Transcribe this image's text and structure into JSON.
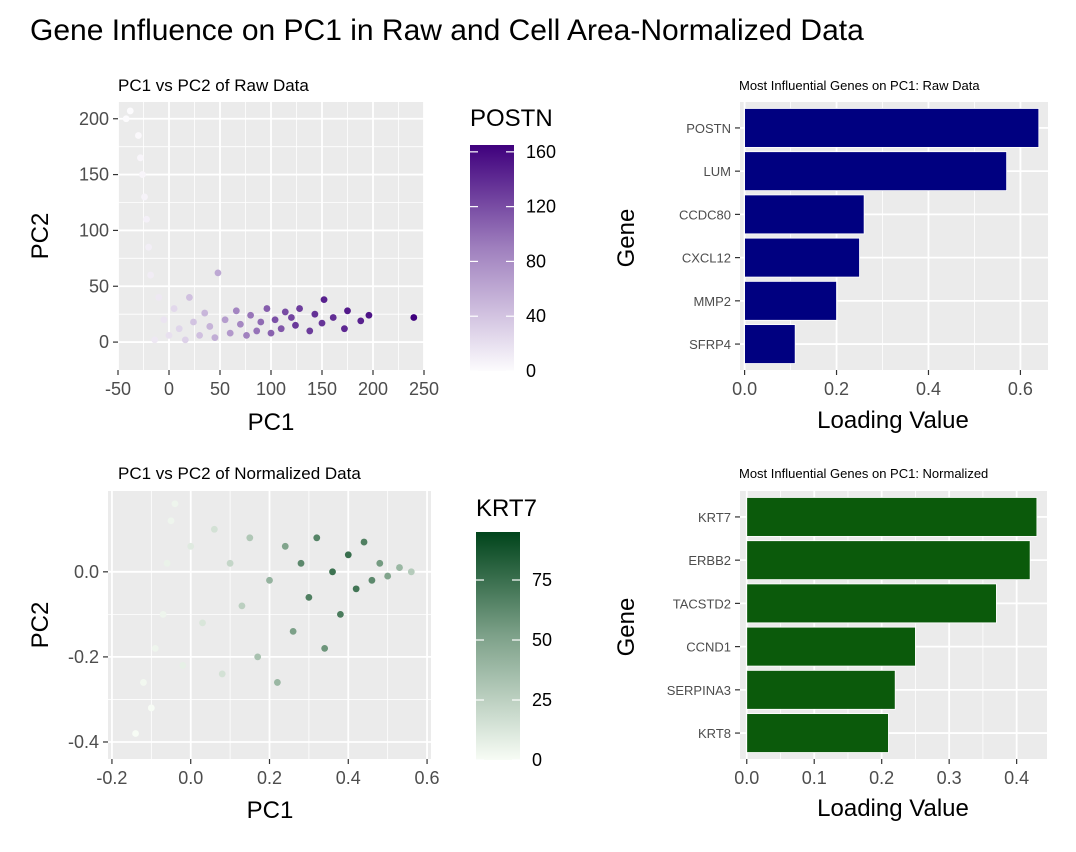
{
  "title": "Gene Influence on PC1 in Raw and Cell Area-Normalized Data",
  "colors": {
    "panel_bg": "#ebebeb",
    "grid": "#ffffff",
    "raw_low": "#fcfbfd",
    "raw_high": "#3f007d",
    "raw_bar": "#000080",
    "norm_low": "#f7fcf5",
    "norm_high": "#00441b",
    "norm_bar": "#0b5a0b"
  },
  "chart_data": [
    {
      "type": "scatter",
      "title": "PC1 vs PC2 of Raw Data",
      "xlabel": "PC1",
      "ylabel": "PC2",
      "xlim": [
        -50,
        250
      ],
      "ylim": [
        -25,
        215
      ],
      "xticks": [
        -50,
        0,
        50,
        100,
        150,
        200,
        250
      ],
      "yticks": [
        0,
        50,
        100,
        150,
        200
      ],
      "xtick_labels": [
        "-50",
        "0",
        "50",
        "100",
        "150",
        "200",
        "250"
      ],
      "ytick_labels": [
        "0",
        "50",
        "100",
        "150",
        "200"
      ],
      "grid": true,
      "legend_placement": "right",
      "color_legend": {
        "title": "POSTN",
        "min": 0,
        "max": 165,
        "ticks": [
          0,
          40,
          80,
          120,
          160
        ],
        "labels": [
          "0",
          "40",
          "80",
          "120",
          "160"
        ]
      },
      "points": [
        {
          "x": 240,
          "y": 22,
          "c": 165
        },
        {
          "x": 196,
          "y": 24,
          "c": 150
        },
        {
          "x": 188,
          "y": 19,
          "c": 140
        },
        {
          "x": 175,
          "y": 28,
          "c": 145
        },
        {
          "x": 172,
          "y": 12,
          "c": 135
        },
        {
          "x": 161,
          "y": 22,
          "c": 130
        },
        {
          "x": 152,
          "y": 38,
          "c": 140
        },
        {
          "x": 150,
          "y": 17,
          "c": 125
        },
        {
          "x": 143,
          "y": 25,
          "c": 128
        },
        {
          "x": 138,
          "y": 10,
          "c": 120
        },
        {
          "x": 128,
          "y": 30,
          "c": 118
        },
        {
          "x": 124,
          "y": 15,
          "c": 122
        },
        {
          "x": 120,
          "y": 22,
          "c": 112
        },
        {
          "x": 114,
          "y": 27,
          "c": 108
        },
        {
          "x": 110,
          "y": 12,
          "c": 100
        },
        {
          "x": 104,
          "y": 20,
          "c": 104
        },
        {
          "x": 100,
          "y": 8,
          "c": 92
        },
        {
          "x": 96,
          "y": 30,
          "c": 96
        },
        {
          "x": 90,
          "y": 18,
          "c": 86
        },
        {
          "x": 86,
          "y": 10,
          "c": 80
        },
        {
          "x": 80,
          "y": 24,
          "c": 78
        },
        {
          "x": 76,
          "y": 6,
          "c": 70
        },
        {
          "x": 70,
          "y": 16,
          "c": 66
        },
        {
          "x": 66,
          "y": 28,
          "c": 68
        },
        {
          "x": 60,
          "y": 8,
          "c": 55
        },
        {
          "x": 55,
          "y": 20,
          "c": 52
        },
        {
          "x": 48,
          "y": 62,
          "c": 45
        },
        {
          "x": 45,
          "y": 4,
          "c": 42
        },
        {
          "x": 40,
          "y": 14,
          "c": 38
        },
        {
          "x": 35,
          "y": 26,
          "c": 36
        },
        {
          "x": 30,
          "y": 6,
          "c": 30
        },
        {
          "x": 24,
          "y": 18,
          "c": 28
        },
        {
          "x": 20,
          "y": 40,
          "c": 30
        },
        {
          "x": 16,
          "y": 2,
          "c": 20
        },
        {
          "x": 10,
          "y": 12,
          "c": 18
        },
        {
          "x": 5,
          "y": 30,
          "c": 16
        },
        {
          "x": 0,
          "y": 6,
          "c": 12
        },
        {
          "x": -5,
          "y": 20,
          "c": 10
        },
        {
          "x": -10,
          "y": 40,
          "c": 8
        },
        {
          "x": -14,
          "y": 2,
          "c": 8
        },
        {
          "x": -18,
          "y": 60,
          "c": 6
        },
        {
          "x": -20,
          "y": 85,
          "c": 5
        },
        {
          "x": -22,
          "y": 110,
          "c": 4
        },
        {
          "x": -24,
          "y": 130,
          "c": 3
        },
        {
          "x": -26,
          "y": 150,
          "c": 2
        },
        {
          "x": -28,
          "y": 165,
          "c": 2
        },
        {
          "x": -30,
          "y": 185,
          "c": 1
        },
        {
          "x": -38,
          "y": 207,
          "c": 0
        },
        {
          "x": -42,
          "y": 200,
          "c": 0
        }
      ]
    },
    {
      "type": "bar",
      "orientation": "horizontal",
      "title": "Most Influential Genes on PC1: Raw Data",
      "xlabel": "Loading Value",
      "ylabel": "Gene",
      "xlim": [
        -0.01,
        0.66
      ],
      "xticks": [
        0,
        0.2,
        0.4,
        0.6
      ],
      "xtick_labels": [
        "0.0",
        "0.2",
        "0.4",
        "0.6"
      ],
      "grid": true,
      "categories": [
        "POSTN",
        "LUM",
        "CCDC80",
        "CXCL12",
        "MMP2",
        "SFRP4"
      ],
      "values": [
        0.64,
        0.57,
        0.26,
        0.25,
        0.2,
        0.11
      ]
    },
    {
      "type": "scatter",
      "title": "PC1 vs PC2 of Normalized Data",
      "xlabel": "PC1",
      "ylabel": "PC2",
      "xlim": [
        -0.21,
        0.61
      ],
      "ylim": [
        -0.44,
        0.19
      ],
      "xticks": [
        -0.2,
        0,
        0.2,
        0.4,
        0.6
      ],
      "yticks": [
        -0.4,
        -0.2,
        0
      ],
      "xtick_labels": [
        "-0.2",
        "0.0",
        "0.2",
        "0.4",
        "0.6"
      ],
      "ytick_labels": [
        "-0.4",
        "-0.2",
        "0.0"
      ],
      "grid": true,
      "legend_placement": "right",
      "color_legend": {
        "title": "KRT7",
        "min": 0,
        "max": 95,
        "ticks": [
          0,
          25,
          50,
          75
        ],
        "labels": [
          "0",
          "25",
          "50",
          "75"
        ]
      },
      "points": [
        {
          "x": -0.14,
          "y": -0.38,
          "c": 0
        },
        {
          "x": -0.1,
          "y": -0.32,
          "c": 0
        },
        {
          "x": -0.12,
          "y": -0.26,
          "c": 1
        },
        {
          "x": -0.09,
          "y": -0.18,
          "c": 2
        },
        {
          "x": -0.07,
          "y": -0.1,
          "c": 2
        },
        {
          "x": -0.06,
          "y": 0.02,
          "c": 3
        },
        {
          "x": -0.05,
          "y": 0.12,
          "c": 2
        },
        {
          "x": -0.04,
          "y": 0.16,
          "c": 2
        },
        {
          "x": -0.02,
          "y": -0.22,
          "c": 4
        },
        {
          "x": 0.0,
          "y": 0.06,
          "c": 6
        },
        {
          "x": 0.03,
          "y": -0.12,
          "c": 8
        },
        {
          "x": 0.06,
          "y": 0.1,
          "c": 10
        },
        {
          "x": 0.08,
          "y": -0.24,
          "c": 10
        },
        {
          "x": 0.1,
          "y": 0.02,
          "c": 15
        },
        {
          "x": 0.13,
          "y": -0.08,
          "c": 18
        },
        {
          "x": 0.15,
          "y": 0.08,
          "c": 22
        },
        {
          "x": 0.17,
          "y": -0.2,
          "c": 25
        },
        {
          "x": 0.2,
          "y": -0.02,
          "c": 32
        },
        {
          "x": 0.22,
          "y": -0.26,
          "c": 30
        },
        {
          "x": 0.24,
          "y": 0.06,
          "c": 40
        },
        {
          "x": 0.26,
          "y": -0.14,
          "c": 42
        },
        {
          "x": 0.28,
          "y": 0.02,
          "c": 55
        },
        {
          "x": 0.3,
          "y": -0.06,
          "c": 60
        },
        {
          "x": 0.32,
          "y": 0.08,
          "c": 58
        },
        {
          "x": 0.34,
          "y": -0.18,
          "c": 48
        },
        {
          "x": 0.36,
          "y": 0.0,
          "c": 68
        },
        {
          "x": 0.38,
          "y": -0.1,
          "c": 62
        },
        {
          "x": 0.4,
          "y": 0.04,
          "c": 70
        },
        {
          "x": 0.42,
          "y": -0.04,
          "c": 66
        },
        {
          "x": 0.44,
          "y": 0.07,
          "c": 60
        },
        {
          "x": 0.46,
          "y": -0.02,
          "c": 55
        },
        {
          "x": 0.48,
          "y": 0.02,
          "c": 45
        },
        {
          "x": 0.5,
          "y": -0.01,
          "c": 40
        },
        {
          "x": 0.53,
          "y": 0.01,
          "c": 30
        },
        {
          "x": 0.56,
          "y": 0.0,
          "c": 20
        }
      ]
    },
    {
      "type": "bar",
      "orientation": "horizontal",
      "title": "Most Influential Genes on PC1: Normalized",
      "xlabel": "Loading Value",
      "ylabel": "Gene",
      "xlim": [
        -0.01,
        0.445
      ],
      "xticks": [
        0,
        0.1,
        0.2,
        0.3,
        0.4
      ],
      "xtick_labels": [
        "0.0",
        "0.1",
        "0.2",
        "0.3",
        "0.4"
      ],
      "grid": true,
      "categories": [
        "KRT7",
        "ERBB2",
        "TACSTD2",
        "CCND1",
        "SERPINA3",
        "KRT8"
      ],
      "values": [
        0.43,
        0.42,
        0.37,
        0.25,
        0.22,
        0.21
      ]
    }
  ]
}
